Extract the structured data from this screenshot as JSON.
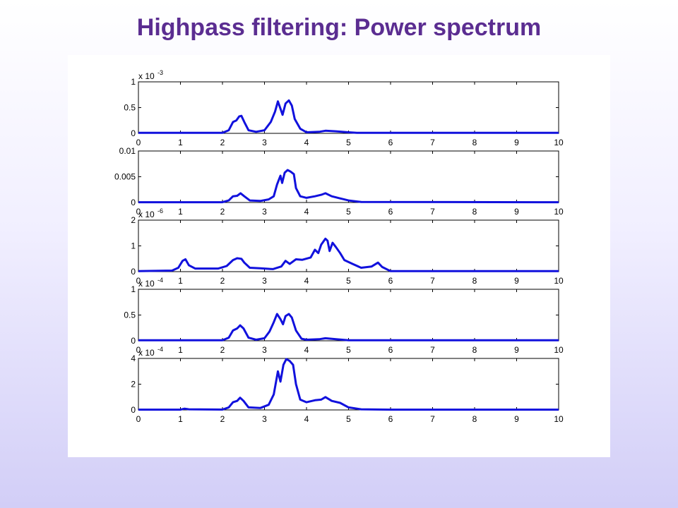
{
  "slide": {
    "title": "Highpass filtering: Power spectrum"
  },
  "colors": {
    "title": "#5b2d91",
    "line": "#1111dd",
    "panel": "#ffffff"
  },
  "chart_data": [
    {
      "type": "line",
      "xlim": [
        0,
        10
      ],
      "ylim": [
        0,
        1
      ],
      "exponent_label": "x 10",
      "exponent": "-3",
      "x_ticks": [
        "0",
        "1",
        "2",
        "3",
        "4",
        "5",
        "6",
        "7",
        "8",
        "9",
        "10"
      ],
      "y_ticks": [
        {
          "v": 0,
          "label": "0"
        },
        {
          "v": 0.5,
          "label": "0.5"
        },
        {
          "v": 1,
          "label": "1"
        }
      ],
      "points": [
        [
          0,
          0.01
        ],
        [
          2.0,
          0.01
        ],
        [
          2.15,
          0.06
        ],
        [
          2.25,
          0.22
        ],
        [
          2.33,
          0.25
        ],
        [
          2.4,
          0.33
        ],
        [
          2.45,
          0.34
        ],
        [
          2.52,
          0.22
        ],
        [
          2.62,
          0.06
        ],
        [
          2.8,
          0.03
        ],
        [
          3.0,
          0.06
        ],
        [
          3.15,
          0.22
        ],
        [
          3.25,
          0.42
        ],
        [
          3.32,
          0.62
        ],
        [
          3.38,
          0.48
        ],
        [
          3.43,
          0.36
        ],
        [
          3.5,
          0.58
        ],
        [
          3.58,
          0.64
        ],
        [
          3.65,
          0.54
        ],
        [
          3.72,
          0.28
        ],
        [
          3.85,
          0.09
        ],
        [
          4.0,
          0.02
        ],
        [
          4.3,
          0.03
        ],
        [
          4.45,
          0.05
        ],
        [
          4.7,
          0.04
        ],
        [
          5.0,
          0.02
        ],
        [
          5.2,
          0.01
        ],
        [
          10,
          0.01
        ]
      ]
    },
    {
      "type": "line",
      "xlim": [
        0,
        10
      ],
      "ylim": [
        0,
        0.01
      ],
      "x_ticks": [
        "0",
        "1",
        "2",
        "3",
        "4",
        "5",
        "6",
        "7",
        "8",
        "9",
        "10"
      ],
      "y_ticks": [
        {
          "v": 0,
          "label": "0"
        },
        {
          "v": 0.005,
          "label": "0.005"
        },
        {
          "v": 0.01,
          "label": "0.01"
        }
      ],
      "points": [
        [
          0,
          5e-05
        ],
        [
          2.0,
          5e-05
        ],
        [
          2.15,
          0.0004
        ],
        [
          2.25,
          0.0012
        ],
        [
          2.35,
          0.0013
        ],
        [
          2.43,
          0.0018
        ],
        [
          2.52,
          0.0012
        ],
        [
          2.65,
          0.0004
        ],
        [
          2.9,
          0.0003
        ],
        [
          3.1,
          0.0006
        ],
        [
          3.22,
          0.0012
        ],
        [
          3.3,
          0.0035
        ],
        [
          3.38,
          0.0052
        ],
        [
          3.42,
          0.0038
        ],
        [
          3.48,
          0.0058
        ],
        [
          3.55,
          0.0063
        ],
        [
          3.62,
          0.006
        ],
        [
          3.7,
          0.0055
        ],
        [
          3.75,
          0.0028
        ],
        [
          3.85,
          0.0012
        ],
        [
          4.0,
          0.0009
        ],
        [
          4.2,
          0.0012
        ],
        [
          4.35,
          0.0015
        ],
        [
          4.45,
          0.0018
        ],
        [
          4.6,
          0.0012
        ],
        [
          4.8,
          0.0008
        ],
        [
          5.0,
          0.0004
        ],
        [
          5.3,
          0.0001
        ],
        [
          10,
          5e-05
        ]
      ]
    },
    {
      "type": "line",
      "xlim": [
        0,
        10
      ],
      "ylim": [
        0,
        2
      ],
      "exponent_label": "x 10",
      "exponent": "-6",
      "x_ticks": [
        "0",
        "1",
        "2",
        "3",
        "4",
        "5",
        "6",
        "7",
        "8",
        "9",
        "10"
      ],
      "y_ticks": [
        {
          "v": 0,
          "label": "0"
        },
        {
          "v": 1,
          "label": "1"
        },
        {
          "v": 2,
          "label": "2"
        }
      ],
      "points": [
        [
          0,
          0.02
        ],
        [
          0.8,
          0.04
        ],
        [
          0.95,
          0.15
        ],
        [
          1.05,
          0.42
        ],
        [
          1.12,
          0.48
        ],
        [
          1.2,
          0.25
        ],
        [
          1.35,
          0.12
        ],
        [
          1.6,
          0.12
        ],
        [
          1.9,
          0.12
        ],
        [
          2.1,
          0.22
        ],
        [
          2.25,
          0.45
        ],
        [
          2.35,
          0.52
        ],
        [
          2.45,
          0.5
        ],
        [
          2.52,
          0.35
        ],
        [
          2.65,
          0.15
        ],
        [
          2.9,
          0.13
        ],
        [
          3.2,
          0.1
        ],
        [
          3.4,
          0.2
        ],
        [
          3.5,
          0.42
        ],
        [
          3.6,
          0.3
        ],
        [
          3.75,
          0.48
        ],
        [
          3.9,
          0.46
        ],
        [
          4.1,
          0.55
        ],
        [
          4.2,
          0.85
        ],
        [
          4.28,
          0.72
        ],
        [
          4.35,
          1.05
        ],
        [
          4.45,
          1.28
        ],
        [
          4.5,
          1.2
        ],
        [
          4.55,
          0.8
        ],
        [
          4.62,
          1.12
        ],
        [
          4.7,
          0.95
        ],
        [
          4.8,
          0.72
        ],
        [
          4.9,
          0.45
        ],
        [
          5.1,
          0.3
        ],
        [
          5.3,
          0.15
        ],
        [
          5.55,
          0.2
        ],
        [
          5.7,
          0.35
        ],
        [
          5.8,
          0.18
        ],
        [
          6.0,
          0.02
        ],
        [
          10,
          0.02
        ]
      ]
    },
    {
      "type": "line",
      "xlim": [
        0,
        10
      ],
      "ylim": [
        0,
        1
      ],
      "exponent_label": "x 10",
      "exponent": "-4",
      "x_ticks": [
        "0",
        "1",
        "2",
        "3",
        "4",
        "5",
        "6",
        "7",
        "8",
        "9",
        "10"
      ],
      "y_ticks": [
        {
          "v": 0,
          "label": "0"
        },
        {
          "v": 0.5,
          "label": "0.5"
        },
        {
          "v": 1,
          "label": "1"
        }
      ],
      "points": [
        [
          0,
          0.01
        ],
        [
          2.0,
          0.01
        ],
        [
          2.15,
          0.06
        ],
        [
          2.25,
          0.2
        ],
        [
          2.35,
          0.24
        ],
        [
          2.42,
          0.3
        ],
        [
          2.5,
          0.24
        ],
        [
          2.62,
          0.06
        ],
        [
          2.8,
          0.02
        ],
        [
          3.0,
          0.05
        ],
        [
          3.12,
          0.18
        ],
        [
          3.22,
          0.36
        ],
        [
          3.3,
          0.52
        ],
        [
          3.38,
          0.42
        ],
        [
          3.44,
          0.32
        ],
        [
          3.5,
          0.48
        ],
        [
          3.58,
          0.52
        ],
        [
          3.65,
          0.45
        ],
        [
          3.75,
          0.2
        ],
        [
          3.88,
          0.04
        ],
        [
          4.0,
          0.02
        ],
        [
          4.3,
          0.03
        ],
        [
          4.45,
          0.05
        ],
        [
          4.7,
          0.03
        ],
        [
          5.0,
          0.01
        ],
        [
          10,
          0.01
        ]
      ]
    },
    {
      "type": "line",
      "xlim": [
        0,
        10
      ],
      "ylim": [
        0,
        4
      ],
      "exponent_label": "x 10",
      "exponent": "-4",
      "x_ticks": [
        "0",
        "1",
        "2",
        "3",
        "4",
        "5",
        "6",
        "7",
        "8",
        "9",
        "10"
      ],
      "y_ticks": [
        {
          "v": 0,
          "label": "0"
        },
        {
          "v": 2,
          "label": "2"
        },
        {
          "v": 4,
          "label": "4"
        }
      ],
      "points": [
        [
          0,
          0.02
        ],
        [
          1.0,
          0.02
        ],
        [
          1.1,
          0.1
        ],
        [
          1.2,
          0.05
        ],
        [
          2.0,
          0.03
        ],
        [
          2.15,
          0.2
        ],
        [
          2.25,
          0.6
        ],
        [
          2.35,
          0.7
        ],
        [
          2.42,
          0.95
        ],
        [
          2.5,
          0.7
        ],
        [
          2.62,
          0.2
        ],
        [
          2.9,
          0.15
        ],
        [
          3.1,
          0.4
        ],
        [
          3.22,
          1.2
        ],
        [
          3.32,
          3.0
        ],
        [
          3.38,
          2.2
        ],
        [
          3.45,
          3.5
        ],
        [
          3.52,
          3.95
        ],
        [
          3.6,
          3.8
        ],
        [
          3.68,
          3.5
        ],
        [
          3.75,
          2.0
        ],
        [
          3.85,
          0.8
        ],
        [
          4.0,
          0.6
        ],
        [
          4.2,
          0.75
        ],
        [
          4.35,
          0.8
        ],
        [
          4.45,
          1.0
        ],
        [
          4.6,
          0.7
        ],
        [
          4.8,
          0.55
        ],
        [
          5.0,
          0.2
        ],
        [
          5.3,
          0.05
        ],
        [
          6.0,
          0.02
        ],
        [
          10,
          0.02
        ]
      ]
    }
  ]
}
